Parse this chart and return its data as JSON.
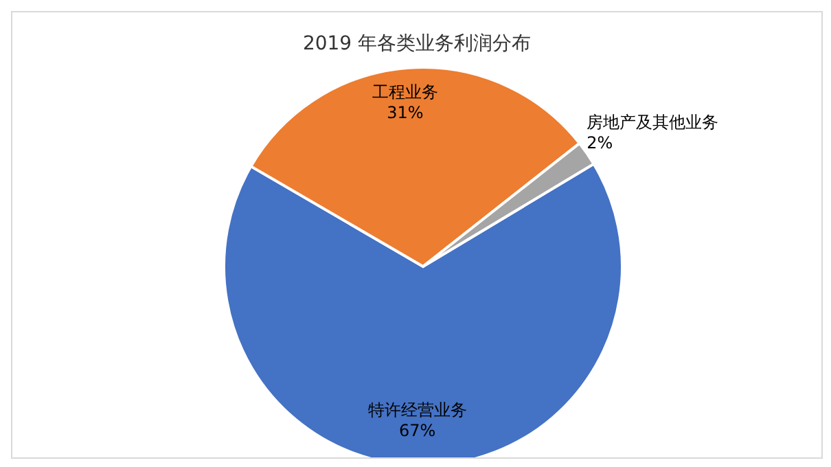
{
  "chart_data": {
    "type": "pie",
    "title": "2019 年各类业务利润分布",
    "categories": [
      "特许经营业务",
      "工程业务",
      "房地产及其他业务"
    ],
    "values": [
      67,
      31,
      2
    ],
    "colors": [
      "#4472c4",
      "#ed7d31",
      "#a5a5a5"
    ],
    "value_labels": [
      "67%",
      "31%",
      "2%"
    ],
    "legend": false
  }
}
